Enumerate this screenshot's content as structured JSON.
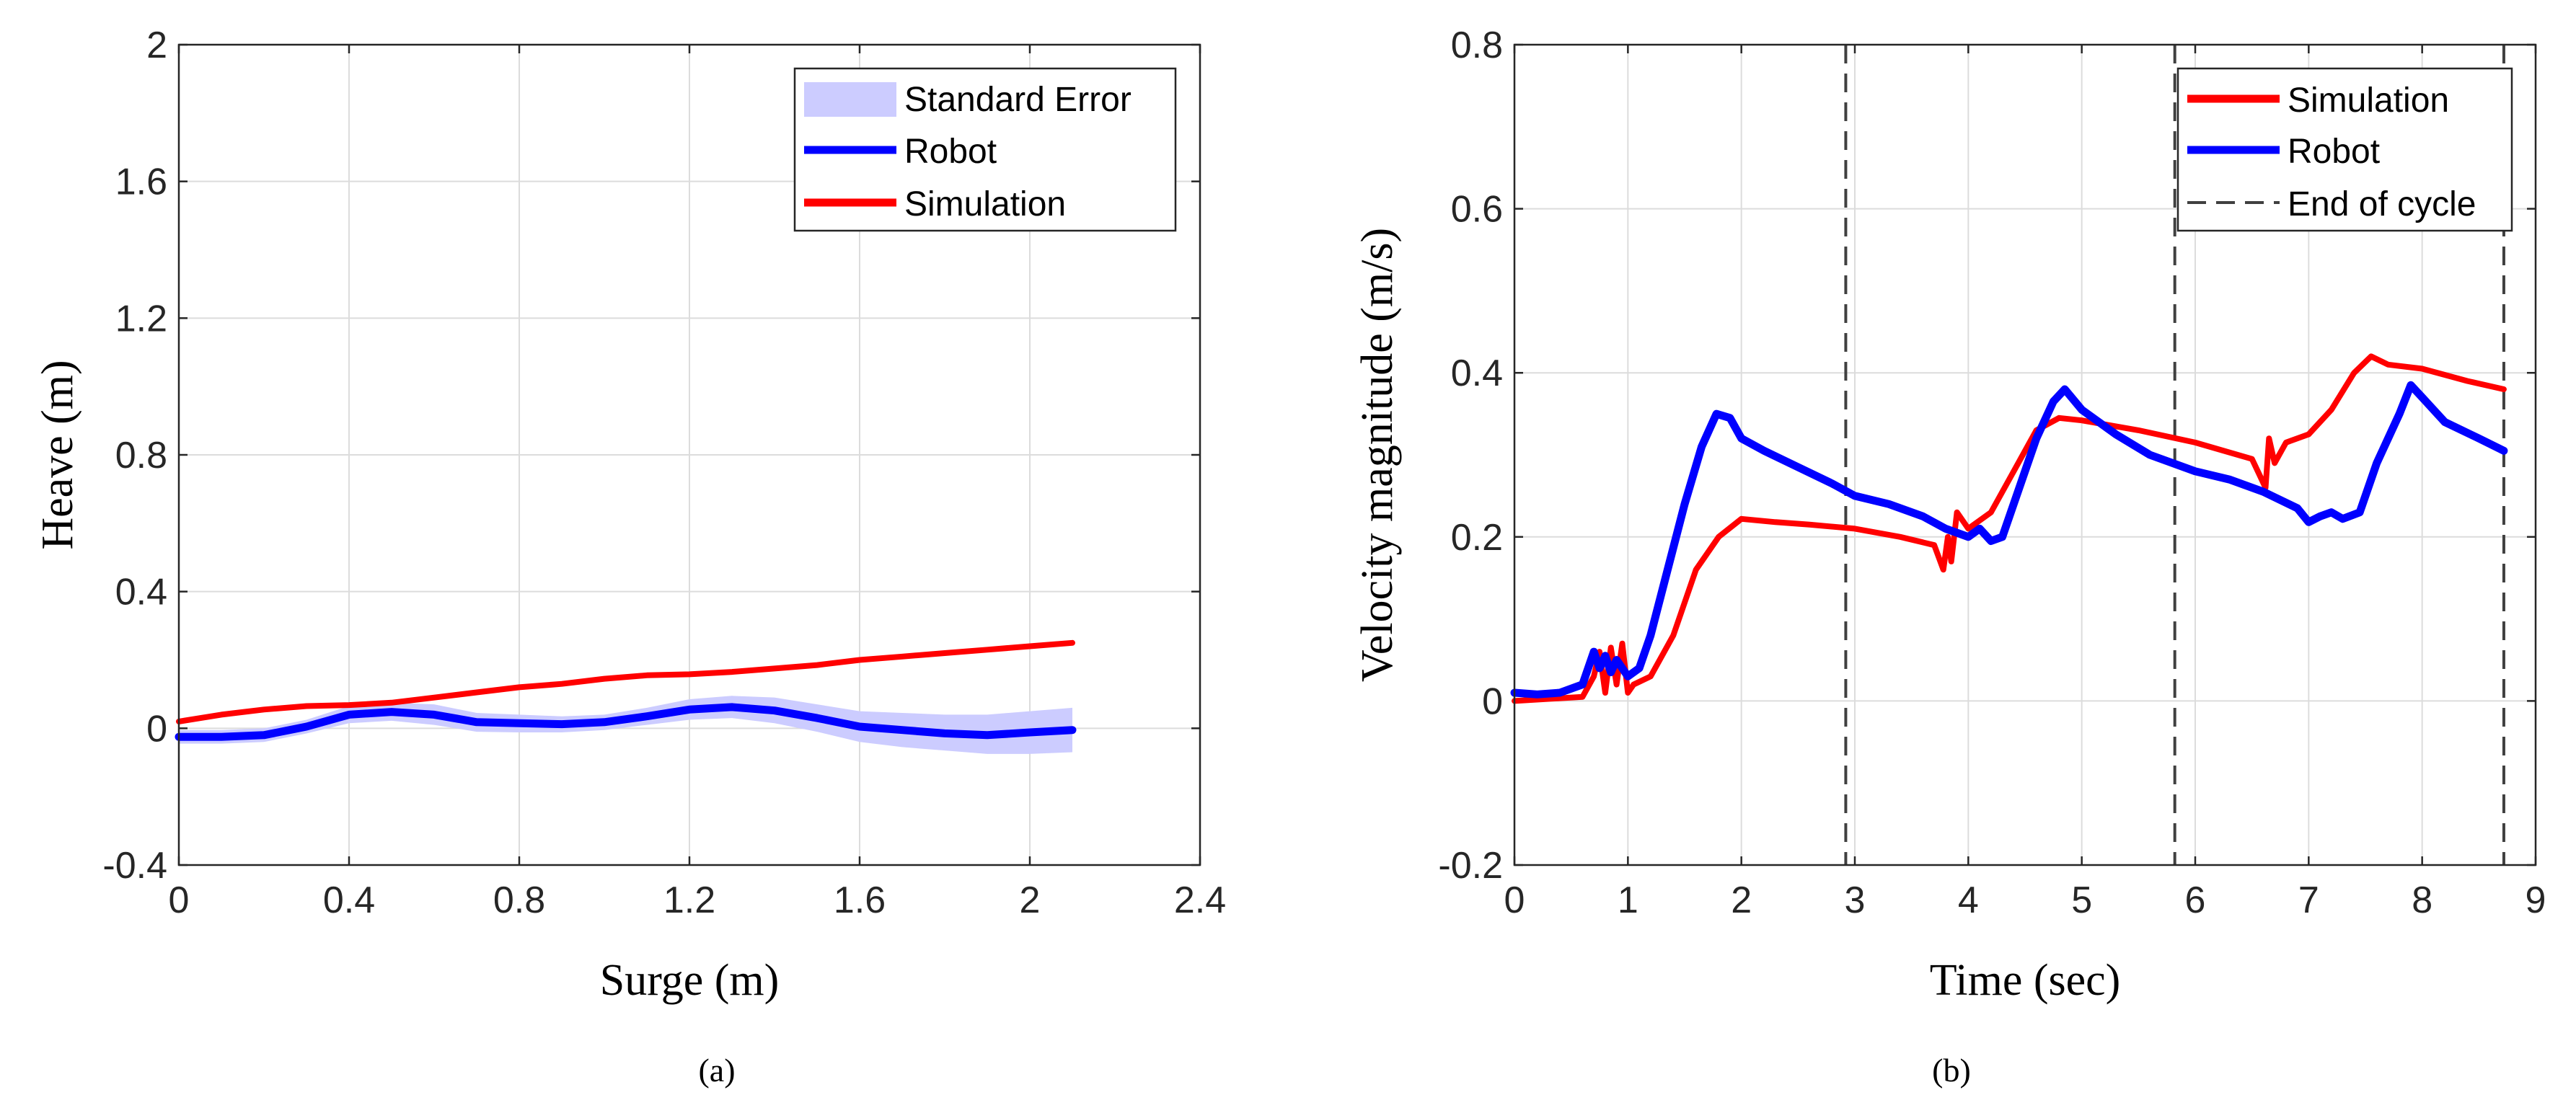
{
  "chart_data": [
    {
      "type": "line",
      "caption": "(a)",
      "xlabel": "Surge (m)",
      "ylabel": "Heave (m)",
      "xlim": [
        0,
        2.4
      ],
      "ylim": [
        -0.4,
        2
      ],
      "xticks": [
        0,
        0.4,
        0.8,
        1.2,
        1.6,
        2,
        2.4
      ],
      "xtick_labels": [
        "0",
        "0.4",
        "0.8",
        "1.2",
        "1.6",
        "2",
        "2.4"
      ],
      "yticks": [
        -0.4,
        0,
        0.4,
        0.8,
        1.2,
        1.6,
        2
      ],
      "ytick_labels": [
        "-0.4",
        "0",
        "0.4",
        "0.8",
        "1.2",
        "1.6",
        "2"
      ],
      "grid": true,
      "legend": "top-right",
      "legend_entries": [
        "Standard Error",
        "Robot",
        "Simulation"
      ],
      "series": [
        {
          "name": "Robot",
          "color": "#0000ff",
          "x": [
            0,
            0.1,
            0.2,
            0.3,
            0.4,
            0.5,
            0.6,
            0.7,
            0.8,
            0.9,
            1.0,
            1.1,
            1.2,
            1.3,
            1.4,
            1.5,
            1.6,
            1.7,
            1.8,
            1.9,
            2.0,
            2.1
          ],
          "y": [
            -0.025,
            -0.025,
            -0.02,
            0.005,
            0.04,
            0.048,
            0.04,
            0.018,
            0.015,
            0.012,
            0.018,
            0.035,
            0.055,
            0.062,
            0.052,
            0.03,
            0.005,
            -0.005,
            -0.015,
            -0.02,
            -0.012,
            -0.005
          ],
          "std_err_upper": [
            -0.005,
            -0.005,
            0.0,
            0.025,
            0.065,
            0.075,
            0.07,
            0.045,
            0.04,
            0.035,
            0.04,
            0.06,
            0.085,
            0.095,
            0.09,
            0.07,
            0.05,
            0.045,
            0.04,
            0.04,
            0.05,
            0.06
          ],
          "std_err_lower": [
            -0.045,
            -0.045,
            -0.04,
            -0.015,
            0.015,
            0.022,
            0.01,
            -0.01,
            -0.012,
            -0.012,
            -0.005,
            0.01,
            0.025,
            0.03,
            0.015,
            -0.01,
            -0.04,
            -0.055,
            -0.065,
            -0.075,
            -0.075,
            -0.07
          ]
        },
        {
          "name": "Simulation",
          "color": "#ff0000",
          "x": [
            0,
            0.1,
            0.2,
            0.3,
            0.4,
            0.5,
            0.6,
            0.7,
            0.8,
            0.9,
            1.0,
            1.1,
            1.2,
            1.3,
            1.4,
            1.5,
            1.6,
            1.7,
            1.8,
            1.9,
            2.0,
            2.1
          ],
          "y": [
            0.02,
            0.04,
            0.055,
            0.065,
            0.068,
            0.075,
            0.09,
            0.105,
            0.12,
            0.13,
            0.145,
            0.155,
            0.158,
            0.165,
            0.175,
            0.185,
            0.2,
            0.21,
            0.22,
            0.23,
            0.24,
            0.25
          ]
        }
      ]
    },
    {
      "type": "line",
      "caption": "(b)",
      "xlabel": "Time (sec)",
      "ylabel": "Velocity magnitude (m/s)",
      "xlim": [
        0,
        9
      ],
      "ylim": [
        -0.2,
        0.8
      ],
      "xticks": [
        0,
        1,
        2,
        3,
        4,
        5,
        6,
        7,
        8,
        9
      ],
      "xtick_labels": [
        "0",
        "1",
        "2",
        "3",
        "4",
        "5",
        "6",
        "7",
        "8",
        "9"
      ],
      "yticks": [
        -0.2,
        0,
        0.2,
        0.4,
        0.6,
        0.8
      ],
      "ytick_labels": [
        "-0.2",
        "0",
        "0.2",
        "0.4",
        "0.6",
        "0.8"
      ],
      "grid": true,
      "legend": "top-right",
      "legend_entries": [
        "Simulation",
        "Robot",
        "End of cycle"
      ],
      "end_of_cycle_x": [
        2.92,
        5.82,
        8.72
      ],
      "series": [
        {
          "name": "Simulation",
          "color": "#ff0000",
          "x": [
            0,
            0.6,
            0.7,
            0.75,
            0.8,
            0.85,
            0.9,
            0.95,
            1.0,
            1.05,
            1.2,
            1.4,
            1.6,
            1.8,
            2.0,
            2.3,
            2.6,
            3.0,
            3.4,
            3.7,
            3.78,
            3.82,
            3.85,
            3.9,
            4.0,
            4.2,
            4.4,
            4.6,
            4.8,
            5.0,
            5.5,
            6.0,
            6.5,
            6.62,
            6.65,
            6.7,
            6.8,
            7.0,
            7.2,
            7.4,
            7.55,
            7.7,
            8.0,
            8.4,
            8.72
          ],
          "y": [
            0.0,
            0.005,
            0.03,
            0.06,
            0.01,
            0.065,
            0.02,
            0.07,
            0.01,
            0.02,
            0.03,
            0.08,
            0.16,
            0.2,
            0.222,
            0.218,
            0.215,
            0.21,
            0.2,
            0.19,
            0.16,
            0.2,
            0.17,
            0.23,
            0.21,
            0.23,
            0.28,
            0.33,
            0.345,
            0.342,
            0.33,
            0.315,
            0.295,
            0.26,
            0.32,
            0.29,
            0.315,
            0.325,
            0.355,
            0.4,
            0.42,
            0.41,
            0.405,
            0.39,
            0.38
          ]
        },
        {
          "name": "Robot",
          "color": "#0000ff",
          "x": [
            0,
            0.2,
            0.4,
            0.6,
            0.7,
            0.75,
            0.8,
            0.85,
            0.9,
            0.95,
            1.0,
            1.1,
            1.2,
            1.35,
            1.5,
            1.65,
            1.78,
            1.9,
            2.0,
            2.2,
            2.5,
            2.8,
            3.0,
            3.3,
            3.6,
            3.8,
            3.9,
            4.0,
            4.1,
            4.2,
            4.3,
            4.45,
            4.6,
            4.75,
            4.85,
            5.0,
            5.3,
            5.6,
            6.0,
            6.3,
            6.6,
            6.9,
            7.0,
            7.1,
            7.2,
            7.3,
            7.45,
            7.6,
            7.8,
            7.9,
            8.0,
            8.2,
            8.5,
            8.72
          ],
          "y": [
            0.01,
            0.008,
            0.01,
            0.02,
            0.06,
            0.04,
            0.055,
            0.035,
            0.05,
            0.04,
            0.03,
            0.04,
            0.08,
            0.16,
            0.24,
            0.31,
            0.35,
            0.345,
            0.32,
            0.305,
            0.285,
            0.265,
            0.25,
            0.24,
            0.225,
            0.21,
            0.205,
            0.2,
            0.21,
            0.195,
            0.2,
            0.26,
            0.32,
            0.365,
            0.38,
            0.355,
            0.325,
            0.3,
            0.28,
            0.27,
            0.255,
            0.235,
            0.218,
            0.225,
            0.23,
            0.222,
            0.23,
            0.29,
            0.35,
            0.385,
            0.37,
            0.34,
            0.32,
            0.305
          ]
        }
      ]
    }
  ]
}
